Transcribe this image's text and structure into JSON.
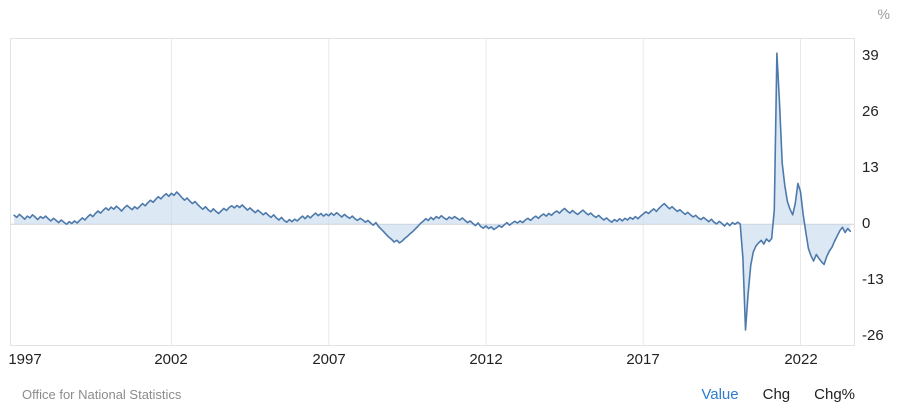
{
  "header": {
    "unit_label": "%"
  },
  "footer": {
    "source": "Office for National Statistics",
    "modes": [
      {
        "label": "Value",
        "active": true
      },
      {
        "label": "Chg",
        "active": false
      },
      {
        "label": "Chg%",
        "active": false
      }
    ]
  },
  "colors": {
    "line": "#4d7aab",
    "area_fill": "#c7d9ee",
    "gridline": "#e9e9e9",
    "zero_line": "#d2d2d2",
    "active_mode": "#2e7bcf",
    "inactive_mode": "#222222",
    "axis_text": "#222222",
    "source_text": "#8c8c8c"
  },
  "chart_data": {
    "type": "area",
    "title": "",
    "unit": "%",
    "source": "Office for National Statistics",
    "legend": [],
    "grid": "vertical-only",
    "x_ticks": [
      1997,
      2002,
      2007,
      2012,
      2017,
      2022
    ],
    "y_ticks": [
      39,
      26,
      13,
      0,
      -13,
      -26
    ],
    "xlim": [
      1996.9,
      2023.7
    ],
    "ylim": [
      -28,
      43
    ],
    "x_start": 1997.0,
    "x_step_years": 0.0833333,
    "frequency": "monthly",
    "values": [
      2.1,
      1.6,
      2.3,
      1.8,
      1.2,
      1.9,
      1.5,
      2.2,
      1.7,
      1.1,
      1.8,
      1.4,
      1.9,
      1.3,
      0.8,
      1.4,
      0.9,
      0.4,
      1.0,
      0.5,
      0.0,
      0.6,
      0.2,
      0.8,
      0.3,
      0.9,
      1.5,
      1.0,
      1.7,
      2.3,
      1.8,
      2.5,
      3.1,
      2.6,
      3.3,
      3.8,
      3.3,
      4.0,
      3.5,
      4.2,
      3.7,
      3.1,
      3.8,
      4.4,
      3.9,
      3.4,
      4.1,
      3.6,
      4.2,
      4.8,
      4.3,
      5.0,
      5.6,
      5.1,
      5.8,
      6.4,
      5.9,
      6.6,
      7.1,
      6.5,
      7.2,
      6.7,
      7.5,
      6.9,
      6.2,
      5.6,
      6.1,
      5.4,
      4.8,
      5.3,
      4.6,
      4.0,
      3.5,
      4.1,
      3.4,
      2.9,
      3.6,
      3.0,
      2.5,
      3.1,
      3.7,
      3.2,
      3.9,
      4.3,
      3.8,
      4.4,
      3.9,
      4.5,
      3.9,
      3.3,
      3.8,
      3.2,
      2.7,
      3.3,
      2.8,
      2.2,
      2.7,
      2.1,
      1.6,
      2.2,
      1.5,
      1.0,
      1.6,
      0.9,
      0.5,
      1.1,
      0.6,
      1.2,
      0.8,
      1.4,
      1.9,
      1.3,
      2.0,
      1.5,
      2.1,
      2.6,
      2.0,
      2.5,
      1.9,
      2.4,
      2.0,
      2.6,
      2.1,
      2.7,
      2.2,
      1.7,
      2.3,
      1.8,
      1.4,
      1.9,
      1.3,
      0.9,
      1.4,
      1.0,
      0.5,
      0.9,
      0.3,
      -0.2,
      0.4,
      -0.5,
      -1.1,
      -1.7,
      -2.4,
      -3.0,
      -3.5,
      -4.1,
      -3.7,
      -4.3,
      -3.9,
      -3.3,
      -2.8,
      -2.2,
      -1.7,
      -1.1,
      -0.5,
      0.2,
      0.7,
      1.3,
      0.9,
      1.6,
      1.1,
      1.8,
      1.4,
      2.0,
      1.5,
      1.1,
      1.7,
      1.3,
      1.8,
      1.4,
      1.0,
      1.5,
      0.9,
      0.4,
      0.8,
      0.2,
      -0.3,
      0.3,
      -0.5,
      -0.9,
      -0.4,
      -1.0,
      -0.6,
      -1.2,
      -0.8,
      -0.3,
      -0.7,
      -0.1,
      0.4,
      -0.2,
      0.3,
      0.7,
      0.3,
      0.8,
      0.4,
      1.0,
      1.4,
      0.9,
      1.5,
      1.9,
      1.4,
      2.0,
      2.4,
      1.9,
      2.5,
      2.1,
      2.7,
      3.1,
      2.6,
      3.2,
      3.7,
      3.1,
      2.6,
      3.2,
      2.7,
      2.3,
      2.8,
      3.3,
      2.7,
      2.2,
      2.6,
      2.0,
      1.6,
      2.1,
      1.5,
      1.0,
      1.5,
      0.9,
      0.5,
      1.1,
      0.7,
      1.3,
      0.8,
      1.4,
      1.0,
      1.6,
      1.2,
      1.8,
      1.3,
      1.9,
      2.4,
      2.9,
      2.5,
      3.1,
      3.6,
      3.0,
      3.7,
      4.3,
      4.8,
      4.2,
      3.6,
      4.1,
      3.5,
      3.0,
      3.4,
      2.8,
      2.3,
      2.8,
      2.2,
      1.7,
      2.1,
      1.5,
      1.1,
      1.6,
      1.1,
      0.6,
      1.2,
      0.5,
      0.1,
      0.7,
      0.2,
      -0.4,
      0.3,
      -0.3,
      0.4,
      0.0,
      0.5,
      0.1,
      -7.8,
      -24.5,
      -16.2,
      -9.6,
      -6.4,
      -5.0,
      -4.3,
      -3.7,
      -4.6,
      -3.4,
      -4.0,
      -3.3,
      3.4,
      39.7,
      27.8,
      14.2,
      9.0,
      5.3,
      3.5,
      2.2,
      4.9,
      9.5,
      7.6,
      2.4,
      -1.8,
      -5.6,
      -7.3,
      -8.5,
      -7.0,
      -7.9,
      -8.7,
      -9.3,
      -7.5,
      -6.2,
      -5.3,
      -3.9,
      -2.7,
      -1.5,
      -0.7,
      -1.9,
      -1.0,
      -1.6
    ]
  }
}
